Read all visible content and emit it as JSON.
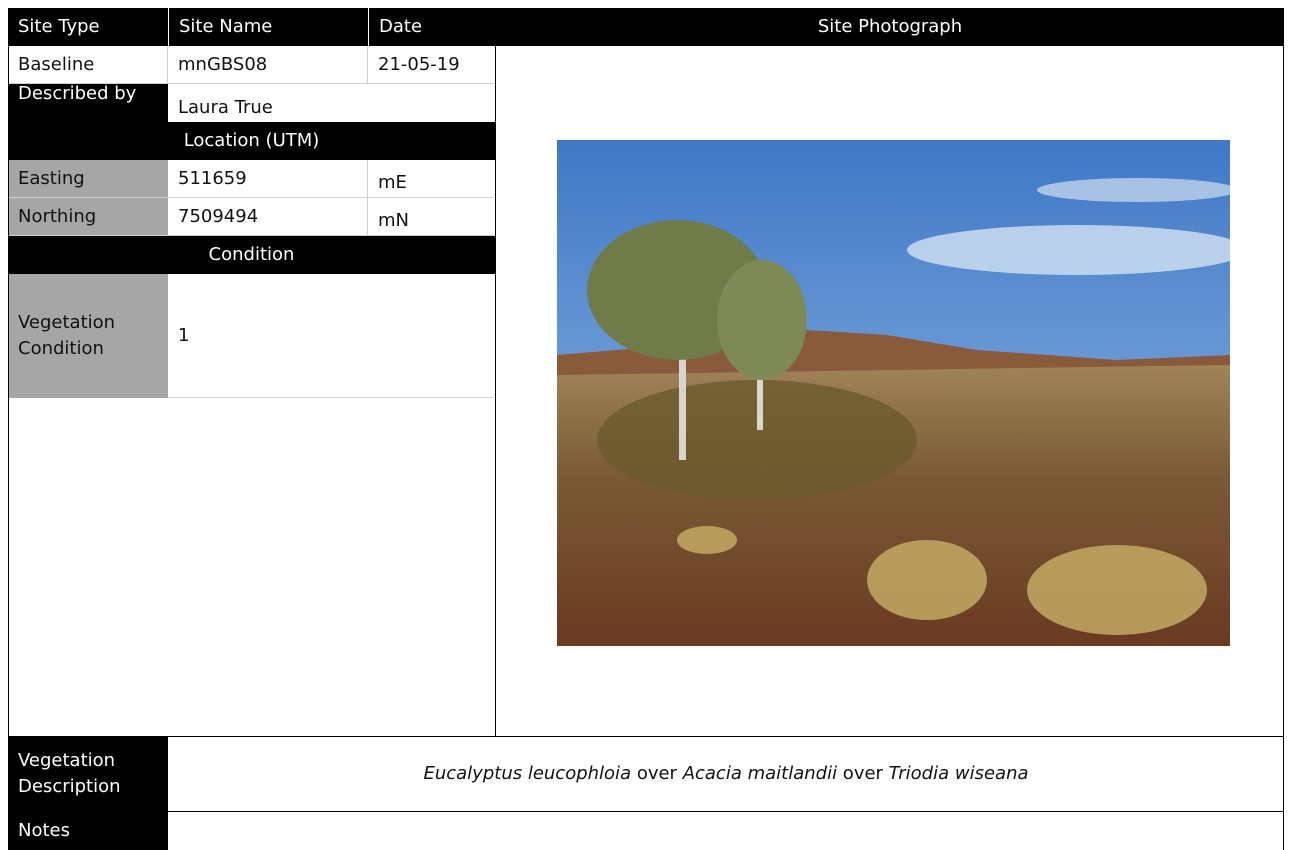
{
  "header": [
    "Site Type",
    "Site Name",
    "Date",
    "Site Photograph"
  ],
  "site": {
    "type": "Baseline",
    "name": "mnGBS08",
    "date": "21-05-19"
  },
  "described_by": {
    "label": "Described by",
    "value": "Laura True"
  },
  "location": {
    "title": "Location (UTM)",
    "rows": [
      {
        "label": "Easting",
        "value": "511659",
        "unit": "mE"
      },
      {
        "label": "Northing",
        "value": "7509494",
        "unit": "mN"
      }
    ]
  },
  "condition": {
    "title": "Condition",
    "label": "Vegetation\nCondition",
    "value": "1"
  },
  "vegetation_description": {
    "label": "Vegetation\nDescription",
    "segments": [
      {
        "text": "Eucalyptus leucophloia",
        "italic": true
      },
      {
        "text": " over ",
        "italic": false
      },
      {
        "text": "Acacia maitlandii",
        "italic": true
      },
      {
        "text": " over ",
        "italic": false
      },
      {
        "text": "Triodia wiseana",
        "italic": true
      }
    ]
  },
  "notes": {
    "label": "Notes"
  }
}
